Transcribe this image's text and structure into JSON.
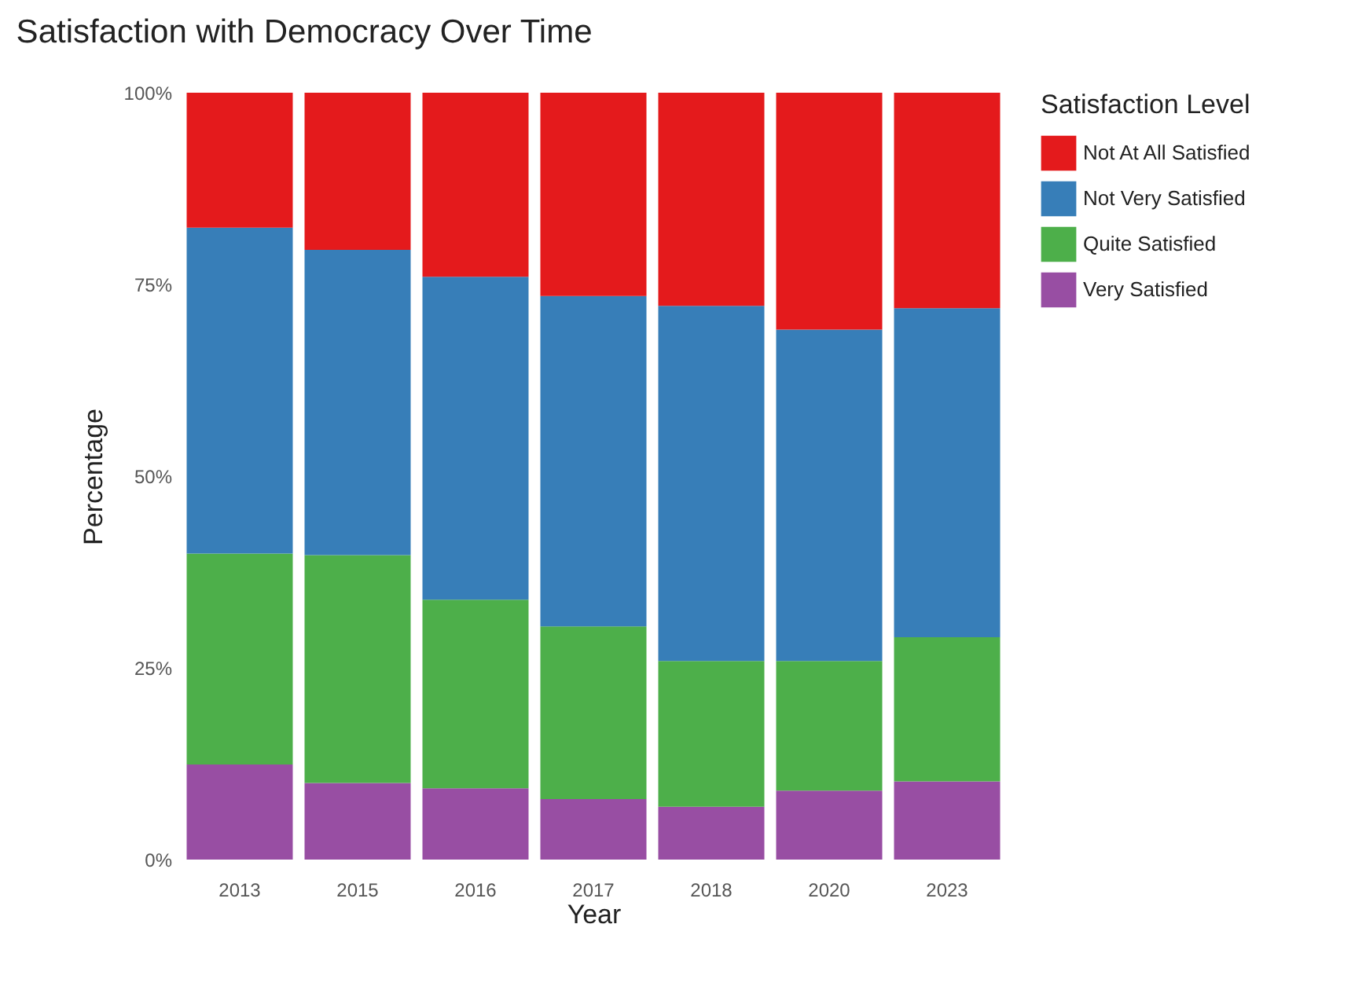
{
  "chart_data": {
    "type": "bar",
    "title": "Satisfaction with Democracy Over Time",
    "xlabel": "Year",
    "ylabel": "Percentage",
    "legend_title": "Satisfaction Level",
    "categories": [
      "2013",
      "2015",
      "2016",
      "2017",
      "2018",
      "2020",
      "2023"
    ],
    "stacked": true,
    "series": [
      {
        "name": "Very Satisfied",
        "color": "#984ea3",
        "values": [
          12.4,
          10.0,
          9.3,
          7.9,
          6.9,
          9.0,
          10.2
        ]
      },
      {
        "name": "Quite Satisfied",
        "color": "#4daf4a",
        "values": [
          27.5,
          29.7,
          24.6,
          22.5,
          19.0,
          16.9,
          18.8
        ]
      },
      {
        "name": "Not Very Satisfied",
        "color": "#377eb8",
        "values": [
          42.5,
          39.8,
          42.1,
          43.1,
          46.3,
          43.2,
          42.9
        ]
      },
      {
        "name": "Not At All Satisfied",
        "color": "#e41a1c",
        "values": [
          17.6,
          20.5,
          24.0,
          26.5,
          27.8,
          30.9,
          28.1
        ]
      }
    ],
    "ylim": [
      0,
      100
    ],
    "yticks": [
      {
        "value": 0,
        "label": "0%"
      },
      {
        "value": 25,
        "label": "25%"
      },
      {
        "value": 50,
        "label": "50%"
      },
      {
        "value": 75,
        "label": "75%"
      },
      {
        "value": 100,
        "label": "100%"
      }
    ],
    "grid": false,
    "legend": "right"
  }
}
